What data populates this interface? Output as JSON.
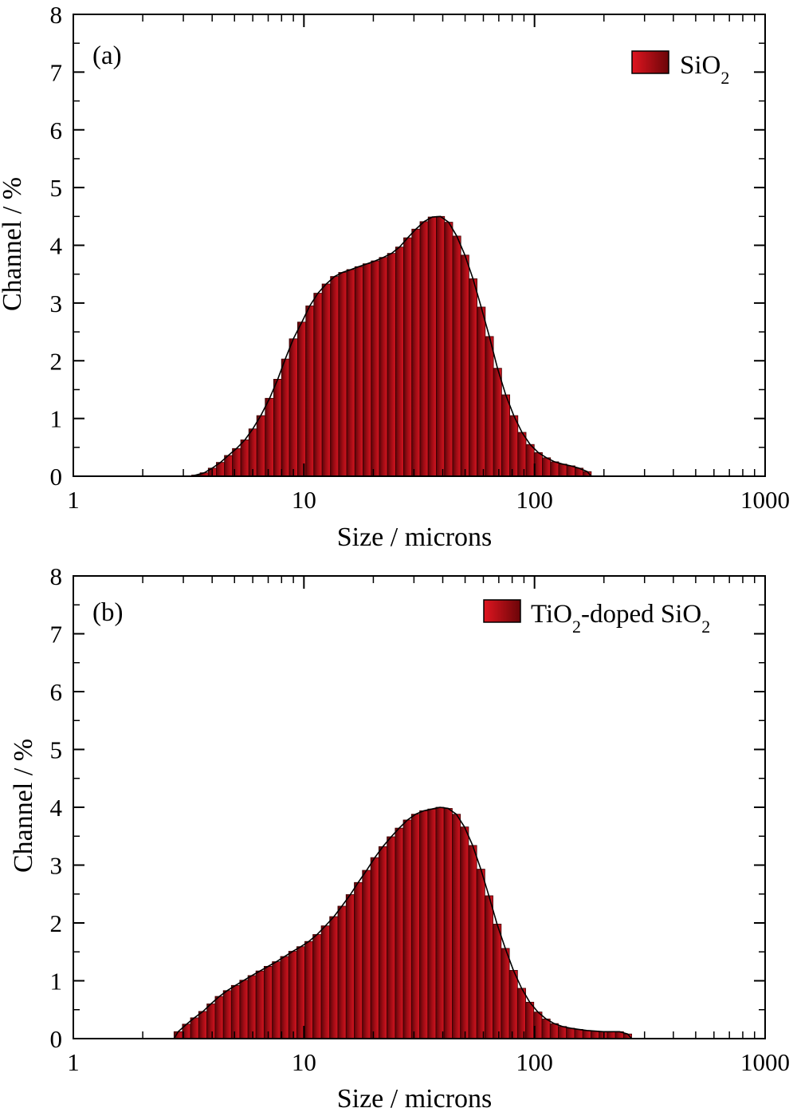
{
  "chart_data": [
    {
      "type": "bar",
      "panel_label": "(a)",
      "xlabel": "Size / microns",
      "ylabel": "Channel / %",
      "xscale": "log",
      "xlim": [
        1,
        1000
      ],
      "ylim": [
        0,
        8
      ],
      "xticks": [
        "1",
        "10",
        "100",
        "1000"
      ],
      "yticks": [
        "0",
        "1",
        "2",
        "3",
        "4",
        "5",
        "6",
        "7",
        "8"
      ],
      "legend": {
        "position": "top-right",
        "base": "SiO",
        "sub": "2",
        "suffix": ""
      },
      "fill_color": "#c8101a",
      "outline_color": "#000000",
      "series": [
        {
          "name": "SiO2",
          "x": [
            3.4,
            3.7,
            4.0,
            4.35,
            4.7,
            5.1,
            5.55,
            6.0,
            6.5,
            7.1,
            7.7,
            8.3,
            9.0,
            9.8,
            10.6,
            11.5,
            12.5,
            13.6,
            14.7,
            16.0,
            17.3,
            18.8,
            20.4,
            22.1,
            24.0,
            26.0,
            28.2,
            30.6,
            33.2,
            36.0,
            39.1,
            42.4,
            46.0,
            49.9,
            54.1,
            58.7,
            63.7,
            69.1,
            75.0,
            81.3,
            88.2,
            95.7,
            103.8,
            112.6,
            122.2,
            132.5,
            143.8,
            156.0,
            169.2
          ],
          "y": [
            0.02,
            0.06,
            0.14,
            0.24,
            0.36,
            0.48,
            0.63,
            0.82,
            1.05,
            1.35,
            1.68,
            2.03,
            2.38,
            2.67,
            2.95,
            3.17,
            3.33,
            3.46,
            3.53,
            3.58,
            3.63,
            3.68,
            3.73,
            3.79,
            3.86,
            3.97,
            4.13,
            4.28,
            4.41,
            4.49,
            4.5,
            4.4,
            4.16,
            3.83,
            3.42,
            2.93,
            2.42,
            1.87,
            1.41,
            1.05,
            0.76,
            0.55,
            0.41,
            0.32,
            0.25,
            0.21,
            0.18,
            0.14,
            0.08
          ]
        }
      ]
    },
    {
      "type": "bar",
      "panel_label": "(b)",
      "xlabel": "Size / microns",
      "ylabel": "Channel / %",
      "xscale": "log",
      "xlim": [
        1,
        1000
      ],
      "ylim": [
        0,
        8
      ],
      "xticks": [
        "1",
        "10",
        "100",
        "1000"
      ],
      "yticks": [
        "0",
        "1",
        "2",
        "3",
        "4",
        "5",
        "6",
        "7",
        "8"
      ],
      "legend": {
        "position": "top-right",
        "base": "TiO",
        "sub": "2",
        "suffix": "-doped SiO",
        "sub2": "2"
      },
      "fill_color": "#c8101a",
      "outline_color": "#000000",
      "series": [
        {
          "name": "TiO2-doped SiO2",
          "x": [
            2.85,
            3.1,
            3.35,
            3.65,
            3.95,
            4.3,
            4.65,
            5.05,
            5.5,
            5.95,
            6.45,
            7.0,
            7.6,
            8.25,
            8.95,
            9.7,
            10.5,
            11.4,
            12.4,
            13.5,
            14.6,
            15.9,
            17.2,
            18.7,
            20.3,
            22.0,
            23.9,
            25.9,
            28.1,
            30.5,
            33.1,
            35.9,
            38.9,
            42.2,
            45.8,
            49.7,
            53.9,
            58.5,
            63.4,
            68.8,
            74.7,
            81.0,
            87.9,
            95.3,
            103.4,
            112.2,
            121.7,
            132.0,
            143.2,
            155.4,
            168.6,
            182.9,
            198.4,
            215.2,
            233.5,
            253.3
          ],
          "y": [
            0.12,
            0.25,
            0.36,
            0.47,
            0.6,
            0.73,
            0.83,
            0.92,
            1.01,
            1.09,
            1.17,
            1.25,
            1.33,
            1.42,
            1.51,
            1.59,
            1.68,
            1.8,
            1.95,
            2.11,
            2.29,
            2.49,
            2.7,
            2.91,
            3.13,
            3.32,
            3.49,
            3.64,
            3.78,
            3.88,
            3.94,
            3.97,
            4.0,
            3.98,
            3.88,
            3.66,
            3.34,
            2.93,
            2.47,
            1.98,
            1.56,
            1.18,
            0.87,
            0.63,
            0.46,
            0.34,
            0.26,
            0.21,
            0.18,
            0.16,
            0.14,
            0.13,
            0.12,
            0.12,
            0.12,
            0.08
          ]
        }
      ]
    }
  ]
}
